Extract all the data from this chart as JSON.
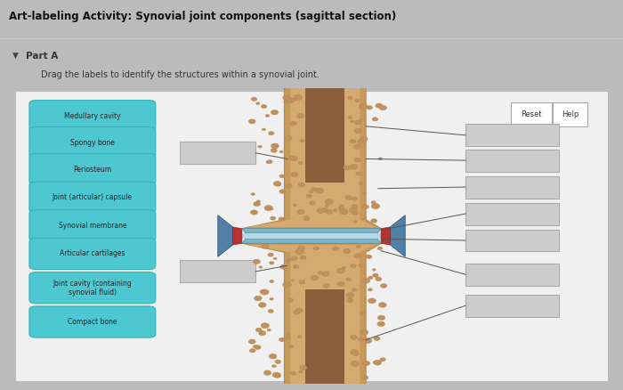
{
  "title": "Art-labeling Activity: Synovial joint components (sagittal section)",
  "part_label": "Part A",
  "instruction": "Drag the labels to identify the structures within a synovial joint.",
  "left_labels": [
    "Medullary cavity",
    "Spongy bone",
    "Periosteum",
    "Joint (articular) capsule",
    "Synovial membrane",
    "Articular cartilages",
    "Joint cavity (containing\nsynovial fluid)",
    "Compact bone"
  ],
  "label_cyan": "#4ec8d0",
  "label_cyan_edge": "#3ab0b8",
  "label_text": "#222222",
  "panel_bg": "#d8d8d8",
  "inner_bg": "#f0f0f0",
  "header_bg": "#ffffff",
  "empty_box_fill": "#cccccc",
  "empty_box_edge": "#aaaaaa",
  "btn_fill": "#ffffff",
  "btn_edge": "#aaaaaa"
}
